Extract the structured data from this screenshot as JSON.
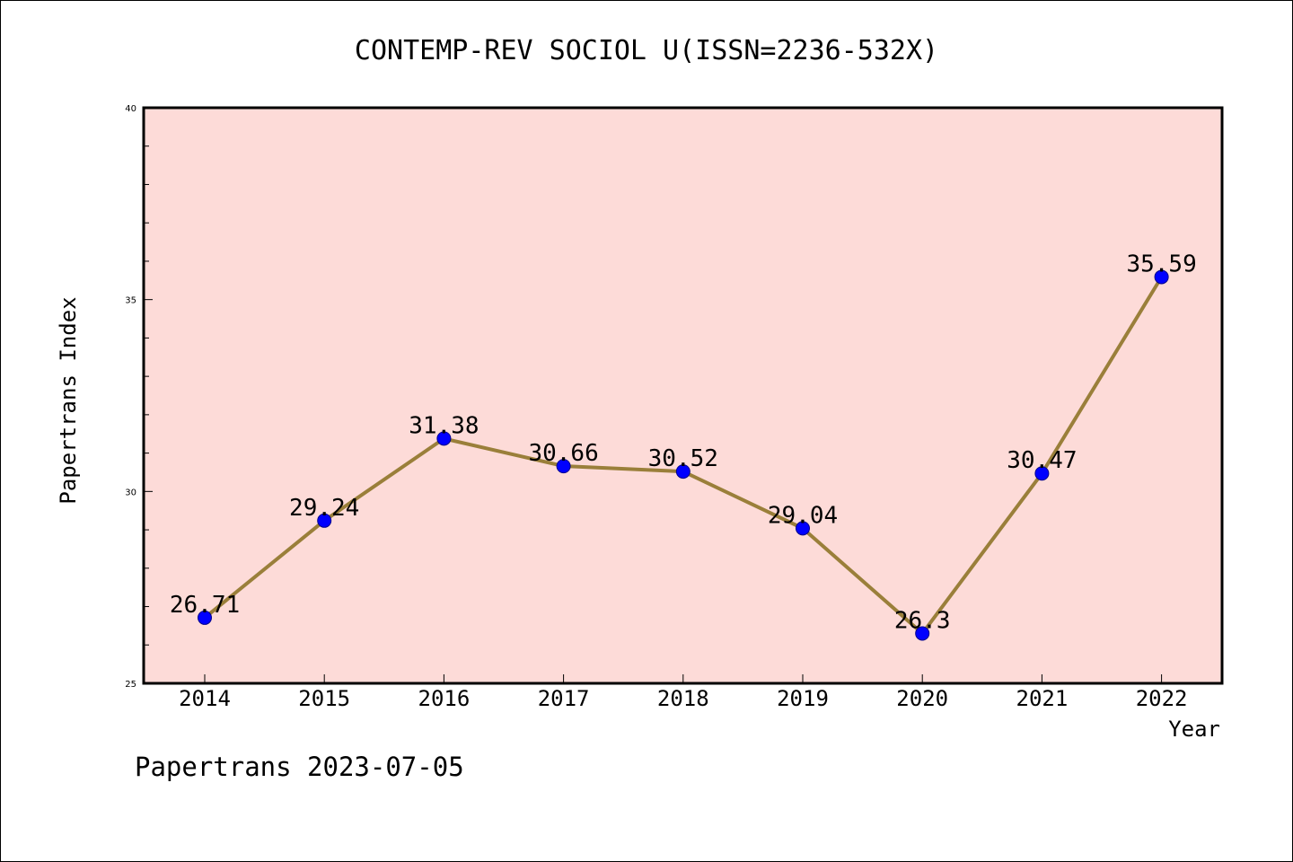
{
  "footer": "Papertrans 2023-07-05",
  "chart_data": {
    "type": "line",
    "title": "CONTEMP-REV SOCIOL U(ISSN=2236-532X)",
    "xlabel": "Year",
    "ylabel": "Papertrans Index",
    "categories": [
      "2014",
      "2015",
      "2016",
      "2017",
      "2018",
      "2019",
      "2020",
      "2021",
      "2022"
    ],
    "values": [
      26.71,
      29.24,
      31.38,
      30.66,
      30.52,
      29.04,
      26.3,
      30.47,
      35.59
    ],
    "data_labels": [
      "26.71",
      "29.24",
      "31.38",
      "30.66",
      "30.52",
      "29.04",
      "26.3",
      "30.47",
      "35.59"
    ],
    "ylim": [
      25,
      40
    ],
    "yticks": [
      25,
      30,
      35,
      40
    ],
    "grid": false,
    "colors": {
      "plot_background": "#fddbd8",
      "line": "#9a7f3a",
      "marker": "#0000ff",
      "marker_edge": "#00008b"
    }
  }
}
